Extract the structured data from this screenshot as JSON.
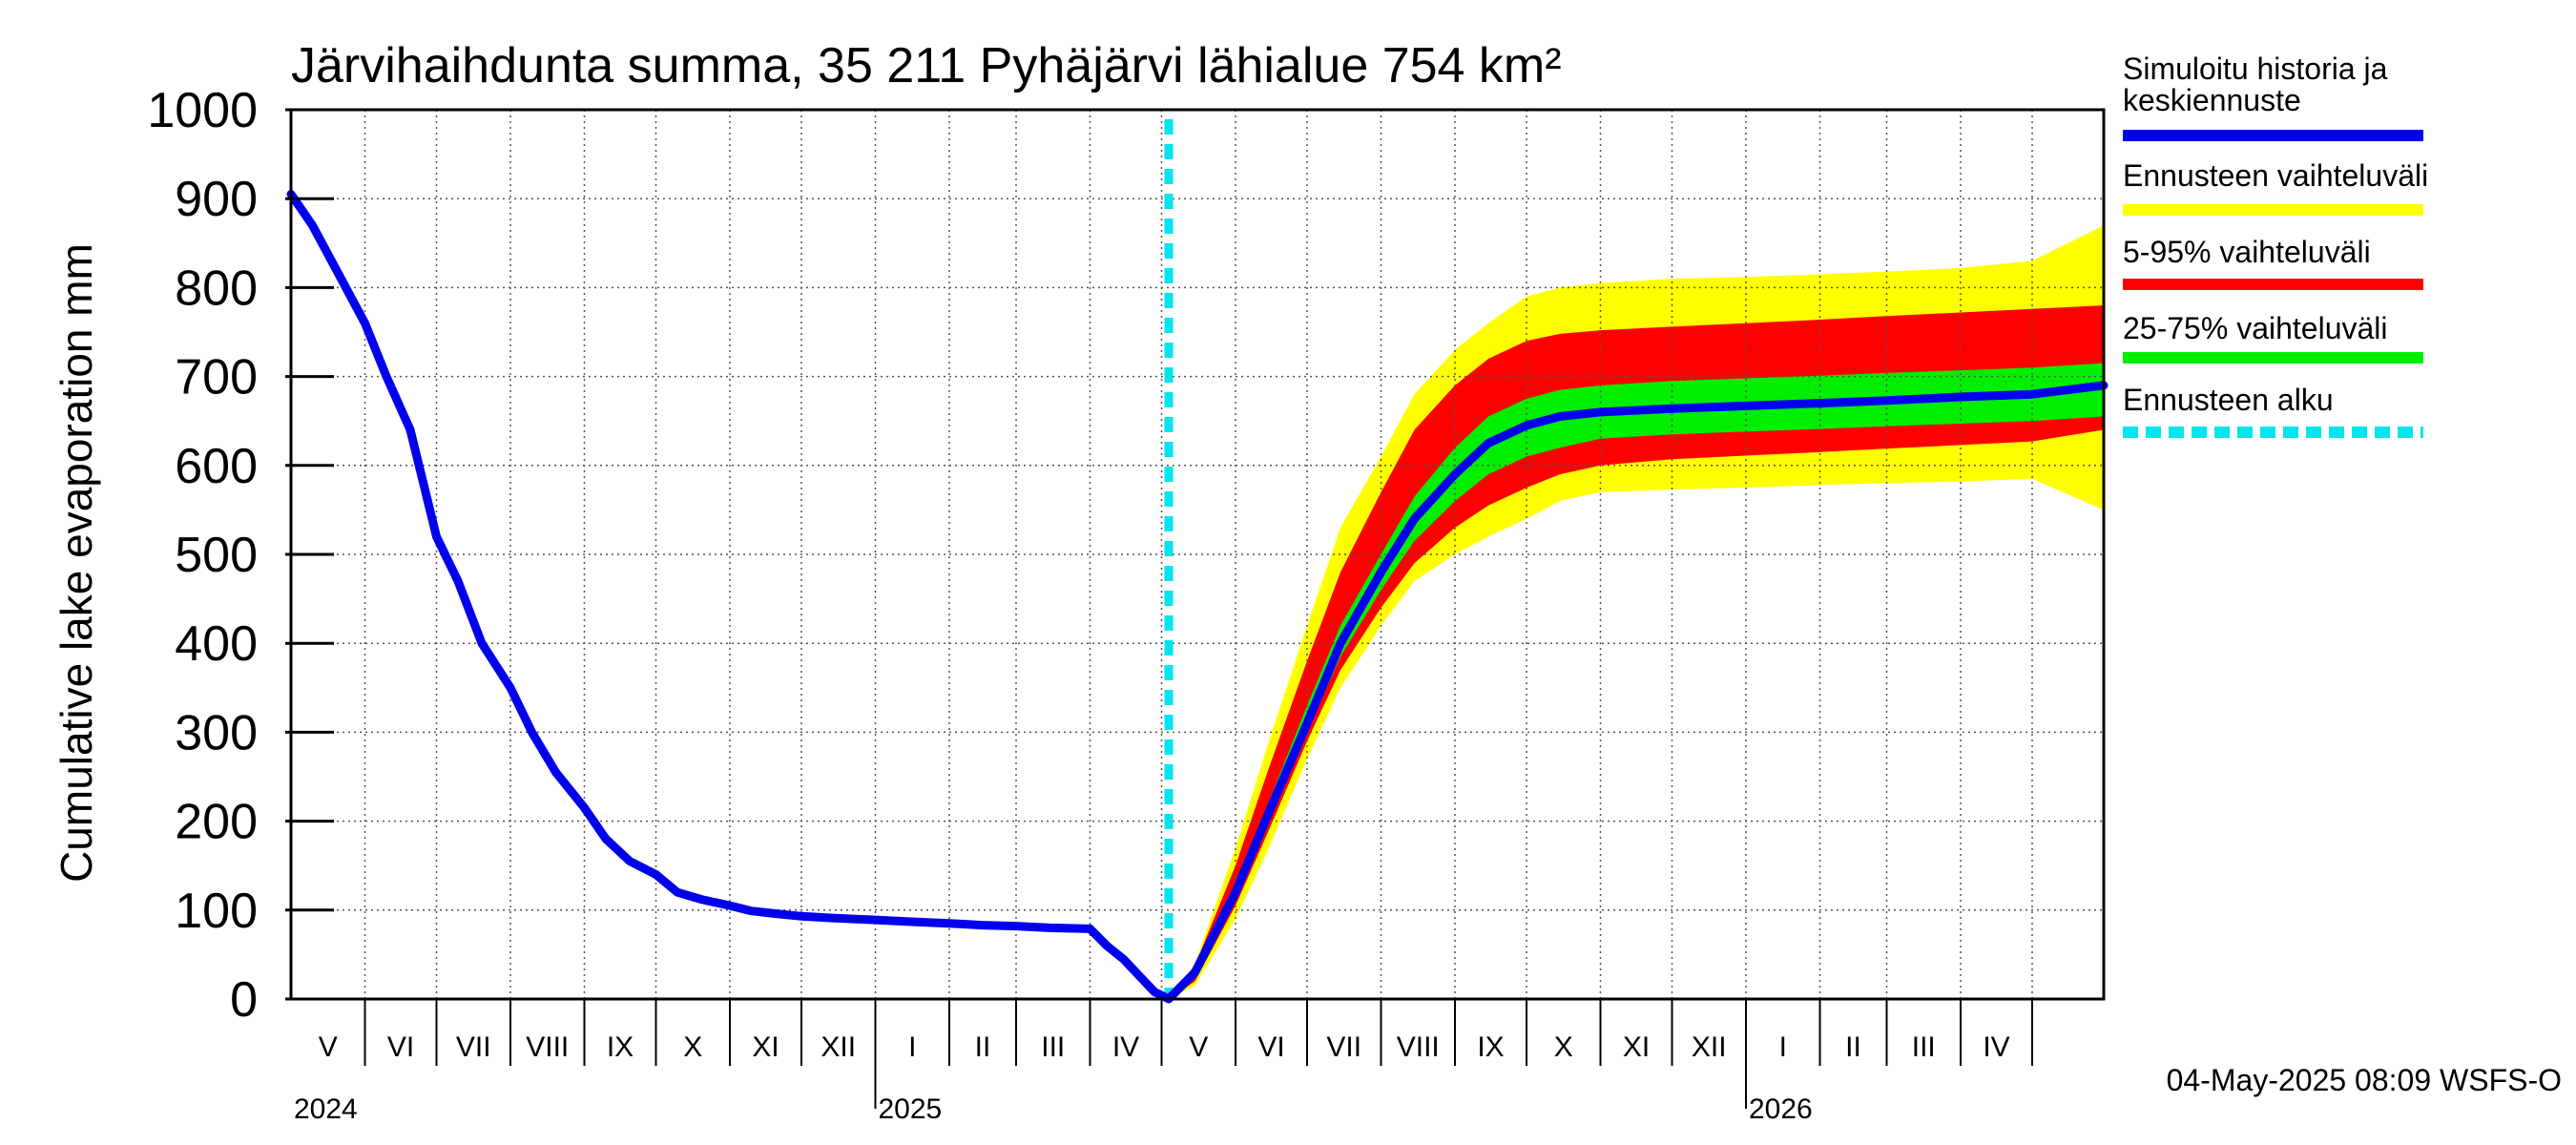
{
  "chart_data": {
    "type": "area",
    "title": "Järvihaihdunta summa, 35 211 Pyhäjärvi lähialue 754 km²",
    "ylabel": "Cumulative lake evaporation   mm",
    "ylim": [
      0,
      1000
    ],
    "yticks": [
      0,
      100,
      200,
      300,
      400,
      500,
      600,
      700,
      800,
      900,
      1000
    ],
    "xlim": [
      "2024-05-01",
      "2026-05-31"
    ],
    "grid": true,
    "months": [
      {
        "label": "V",
        "start": "2024-05-01"
      },
      {
        "label": "VI",
        "start": "2024-06-01"
      },
      {
        "label": "VII",
        "start": "2024-07-01"
      },
      {
        "label": "VIII",
        "start": "2024-08-01"
      },
      {
        "label": "IX",
        "start": "2024-09-01"
      },
      {
        "label": "X",
        "start": "2024-10-01"
      },
      {
        "label": "XI",
        "start": "2024-11-01"
      },
      {
        "label": "XII",
        "start": "2024-12-01"
      },
      {
        "label": "I",
        "start": "2025-01-01"
      },
      {
        "label": "II",
        "start": "2025-02-01"
      },
      {
        "label": "III",
        "start": "2025-03-01"
      },
      {
        "label": "IV",
        "start": "2025-04-01"
      },
      {
        "label": "V",
        "start": "2025-05-01"
      },
      {
        "label": "VI",
        "start": "2025-06-01"
      },
      {
        "label": "VII",
        "start": "2025-07-01"
      },
      {
        "label": "VIII",
        "start": "2025-08-01"
      },
      {
        "label": "IX",
        "start": "2025-09-01"
      },
      {
        "label": "X",
        "start": "2025-10-01"
      },
      {
        "label": "XI",
        "start": "2025-11-01"
      },
      {
        "label": "XII",
        "start": "2025-12-01"
      },
      {
        "label": "I",
        "start": "2026-01-01"
      },
      {
        "label": "II",
        "start": "2026-02-01"
      },
      {
        "label": "III",
        "start": "2026-03-01"
      },
      {
        "label": "IV",
        "start": "2026-04-01"
      },
      {
        "label": "",
        "start": "2026-05-01"
      }
    ],
    "years": [
      {
        "label": "2024",
        "date": "2024-05-01"
      },
      {
        "label": "2025",
        "date": "2025-01-01"
      },
      {
        "label": "2026",
        "date": "2026-01-01"
      }
    ],
    "forecast_start": "2025-05-04",
    "series": [
      {
        "name": "Simuloitu historia ja keskiennuste",
        "color": "#0000ee",
        "kind": "line",
        "x": [
          "2024-05-01",
          "2024-05-10",
          "2024-05-20",
          "2024-06-01",
          "2024-06-10",
          "2024-06-20",
          "2024-07-01",
          "2024-07-10",
          "2024-07-20",
          "2024-08-01",
          "2024-08-10",
          "2024-08-20",
          "2024-09-01",
          "2024-09-10",
          "2024-09-20",
          "2024-10-01",
          "2024-10-10",
          "2024-10-20",
          "2024-11-01",
          "2024-11-10",
          "2024-11-20",
          "2024-12-01",
          "2024-12-15",
          "2025-01-01",
          "2025-01-15",
          "2025-02-01",
          "2025-02-15",
          "2025-03-01",
          "2025-03-15",
          "2025-04-01",
          "2025-04-08",
          "2025-04-15",
          "2025-04-22",
          "2025-04-28",
          "2025-05-04",
          "2025-05-15",
          "2025-06-01",
          "2025-06-15",
          "2025-07-01",
          "2025-07-15",
          "2025-08-01",
          "2025-08-15",
          "2025-09-01",
          "2025-09-15",
          "2025-10-01",
          "2025-10-15",
          "2025-11-01",
          "2025-12-01",
          "2026-01-01",
          "2026-02-01",
          "2026-03-01",
          "2026-04-01",
          "2026-05-01",
          "2026-05-31"
        ],
        "y": [
          905,
          870,
          820,
          760,
          700,
          640,
          520,
          470,
          400,
          350,
          300,
          255,
          215,
          180,
          155,
          140,
          120,
          112,
          105,
          99,
          96,
          93,
          91,
          89,
          87,
          85,
          83,
          82,
          80,
          79,
          60,
          45,
          25,
          8,
          0,
          30,
          120,
          210,
          310,
          400,
          480,
          540,
          590,
          625,
          645,
          655,
          660,
          664,
          667,
          670,
          673,
          677,
          680,
          690
        ]
      },
      {
        "name": "Ennusteen vaihteluväli",
        "color": "#ffff00",
        "kind": "band",
        "x": [
          "2025-05-04",
          "2025-05-15",
          "2025-06-01",
          "2025-06-15",
          "2025-07-01",
          "2025-07-15",
          "2025-08-01",
          "2025-08-15",
          "2025-09-01",
          "2025-09-15",
          "2025-10-01",
          "2025-10-15",
          "2025-11-01",
          "2025-12-01",
          "2026-01-01",
          "2026-02-01",
          "2026-03-01",
          "2026-04-01",
          "2026-05-01",
          "2026-05-31"
        ],
        "lower": [
          0,
          15,
          90,
          170,
          270,
          350,
          420,
          470,
          500,
          520,
          540,
          560,
          570,
          573,
          575,
          578,
          580,
          582,
          585,
          550
        ],
        "upper": [
          0,
          40,
          170,
          290,
          420,
          530,
          610,
          680,
          730,
          760,
          790,
          800,
          805,
          810,
          812,
          815,
          818,
          822,
          830,
          870
        ]
      },
      {
        "name": "5-95% vaihteluväli",
        "color": "#ff0000",
        "kind": "band",
        "x": [
          "2025-05-04",
          "2025-05-15",
          "2025-06-01",
          "2025-06-15",
          "2025-07-01",
          "2025-07-15",
          "2025-08-01",
          "2025-08-15",
          "2025-09-01",
          "2025-09-15",
          "2025-10-01",
          "2025-10-15",
          "2025-11-01",
          "2025-12-01",
          "2026-01-01",
          "2026-02-01",
          "2026-03-01",
          "2026-04-01",
          "2026-05-01",
          "2026-05-31"
        ],
        "lower": [
          0,
          20,
          105,
          190,
          290,
          370,
          440,
          490,
          530,
          555,
          575,
          590,
          600,
          607,
          611,
          615,
          619,
          623,
          627,
          640
        ],
        "upper": [
          0,
          38,
          150,
          260,
          380,
          480,
          570,
          640,
          690,
          720,
          740,
          748,
          752,
          756,
          760,
          764,
          768,
          772,
          776,
          780
        ]
      },
      {
        "name": "25-75% vaihteluväli",
        "color": "#00ee00",
        "kind": "band",
        "x": [
          "2025-05-04",
          "2025-05-15",
          "2025-06-01",
          "2025-06-15",
          "2025-07-01",
          "2025-07-15",
          "2025-08-01",
          "2025-08-15",
          "2025-09-01",
          "2025-09-15",
          "2025-10-01",
          "2025-10-15",
          "2025-11-01",
          "2025-12-01",
          "2026-01-01",
          "2026-02-01",
          "2026-03-01",
          "2026-04-01",
          "2026-05-01",
          "2026-05-31"
        ],
        "lower": [
          0,
          27,
          112,
          200,
          300,
          385,
          460,
          515,
          560,
          590,
          610,
          620,
          630,
          635,
          638,
          641,
          644,
          647,
          650,
          655
        ],
        "upper": [
          0,
          33,
          130,
          222,
          330,
          420,
          500,
          565,
          620,
          655,
          675,
          685,
          690,
          695,
          698,
          701,
          704,
          707,
          710,
          715
        ]
      },
      {
        "name": "Ennusteen alku",
        "color": "#00e5ee",
        "kind": "vline"
      }
    ]
  },
  "legend": {
    "items": [
      {
        "label_lines": [
          "Simuloitu historia ja",
          "keskiennuste"
        ],
        "color": "#0000ee",
        "style": "solid"
      },
      {
        "label_lines": [
          "Ennusteen vaihteluväli"
        ],
        "color": "#ffff00",
        "style": "solid"
      },
      {
        "label_lines": [
          "5-95% vaihteluväli"
        ],
        "color": "#ff0000",
        "style": "solid"
      },
      {
        "label_lines": [
          "25-75% vaihteluväli"
        ],
        "color": "#00ee00",
        "style": "solid"
      },
      {
        "label_lines": [
          "Ennusteen alku"
        ],
        "color": "#00e5ee",
        "style": "dashed"
      }
    ]
  },
  "footer": "04-May-2025 08:09 WSFS-O"
}
